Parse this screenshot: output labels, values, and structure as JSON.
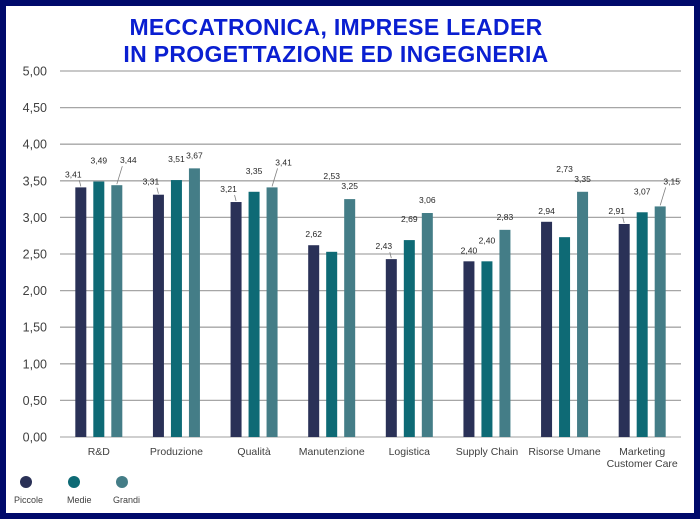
{
  "title_lines": [
    "MECCATRONICA, IMPRESE LEADER",
    "IN PROGETTAZIONE ED INGEGNERIA"
  ],
  "chart_data": {
    "type": "bar",
    "categories": [
      "R&D",
      "Produzione",
      "Qualità",
      "Manutenzione",
      "Logistica",
      "Supply Chain",
      "Risorse Umane",
      "Marketing Customer Care"
    ],
    "series": [
      {
        "name": "Piccole",
        "color": "#2a3157",
        "values": [
          3.41,
          3.31,
          3.21,
          2.62,
          2.43,
          2.4,
          2.94,
          2.91
        ]
      },
      {
        "name": "Medie",
        "color": "#0e6a75",
        "values": [
          3.49,
          3.51,
          3.35,
          2.53,
          2.69,
          2.4,
          2.73,
          3.07
        ]
      },
      {
        "name": "Grandi",
        "color": "#447d87",
        "values": [
          3.44,
          3.67,
          3.41,
          3.25,
          3.06,
          2.83,
          3.35,
          3.15
        ]
      }
    ],
    "value_labels": [
      [
        "3,41",
        "3,31",
        "3,21",
        "2,62",
        "2,43",
        "2,40",
        "2,94",
        "2,91"
      ],
      [
        "3,49",
        "3,51",
        "3,35",
        "2,53",
        "2,69",
        "2,40",
        "2,73",
        "3,07"
      ],
      [
        "3,44",
        "3,67",
        "3,41",
        "3,25",
        "3,06",
        "2,83",
        "3,35",
        "3,15"
      ]
    ],
    "category_label_lines": [
      [
        "R&D"
      ],
      [
        "Produzione"
      ],
      [
        "Qualità"
      ],
      [
        "Manutenzione"
      ],
      [
        "Logistica"
      ],
      [
        "Supply Chain"
      ],
      [
        "Risorse Umane"
      ],
      [
        "Marketing",
        "Customer Care"
      ]
    ],
    "yticks": [
      0,
      0.5,
      1,
      1.5,
      2,
      2.5,
      3,
      3.5,
      4,
      4.5,
      5
    ],
    "ytick_labels": [
      "0,00",
      "0,50",
      "1,00",
      "1,50",
      "2,00",
      "2,50",
      "3,00",
      "3,50",
      "4,00",
      "4,50",
      "5,00"
    ],
    "ylim": [
      0,
      5
    ],
    "grid": true,
    "legend_position": "bottom-left"
  }
}
